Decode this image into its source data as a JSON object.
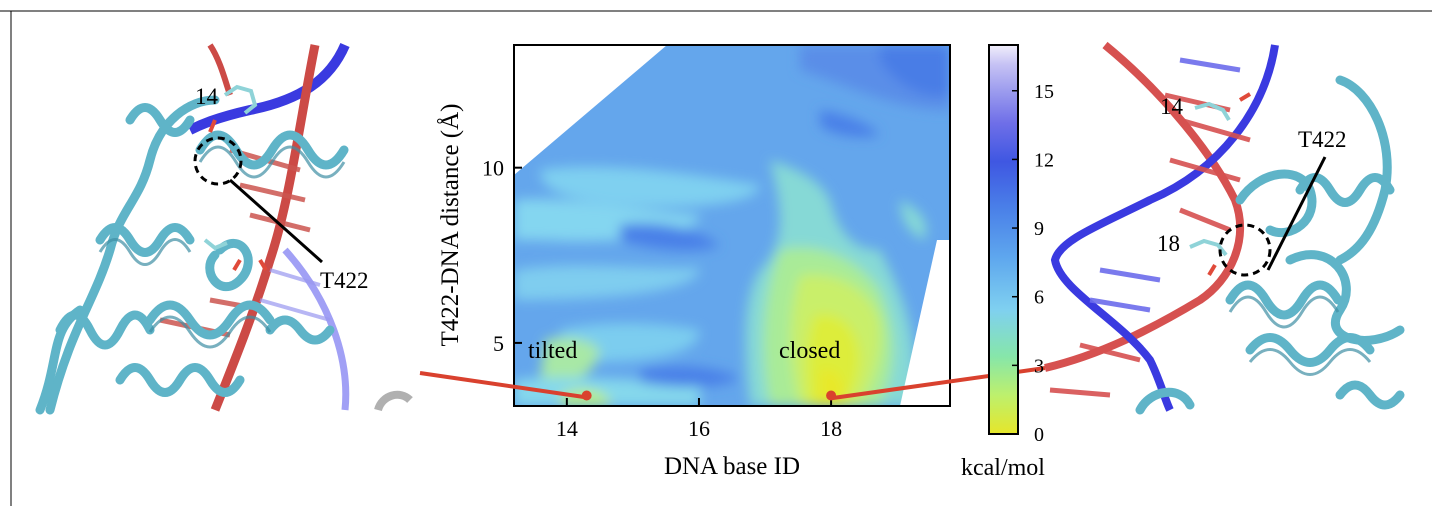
{
  "figure": {
    "left_panel": {
      "labels": {
        "base": "14",
        "residue": "T422"
      }
    },
    "right_panel": {
      "labels": {
        "base_top": "14",
        "base_mid": "18",
        "residue": "T422"
      }
    },
    "annotations": {
      "tilted": "tilted",
      "closed": "closed"
    }
  },
  "chart_data": {
    "type": "heatmap",
    "title": "",
    "xlabel": "DNA base ID",
    "ylabel": "T422-DNA distance (Å)",
    "xlim": [
      13.2,
      19.8
    ],
    "ylim": [
      3.2,
      13.5
    ],
    "x_ticks": [
      14,
      16,
      18
    ],
    "y_ticks": [
      5,
      10
    ],
    "colorbar": {
      "label": "kcal/mol",
      "range": [
        0,
        17
      ],
      "ticks": [
        0,
        3,
        6,
        9,
        12,
        15
      ],
      "colors": [
        "#e6e62a",
        "#bdf06d",
        "#86e6aa",
        "#7fd0f0",
        "#5fa8ee",
        "#4a80e8",
        "#3f57e2",
        "#6f6fe8",
        "#9b9bee",
        "#c6c2f4",
        "#f1effb"
      ]
    },
    "highlighted_points": [
      {
        "label": "tilted",
        "x": 14.3,
        "y": 3.5
      },
      {
        "label": "closed",
        "x": 18.0,
        "y": 3.5
      }
    ]
  }
}
